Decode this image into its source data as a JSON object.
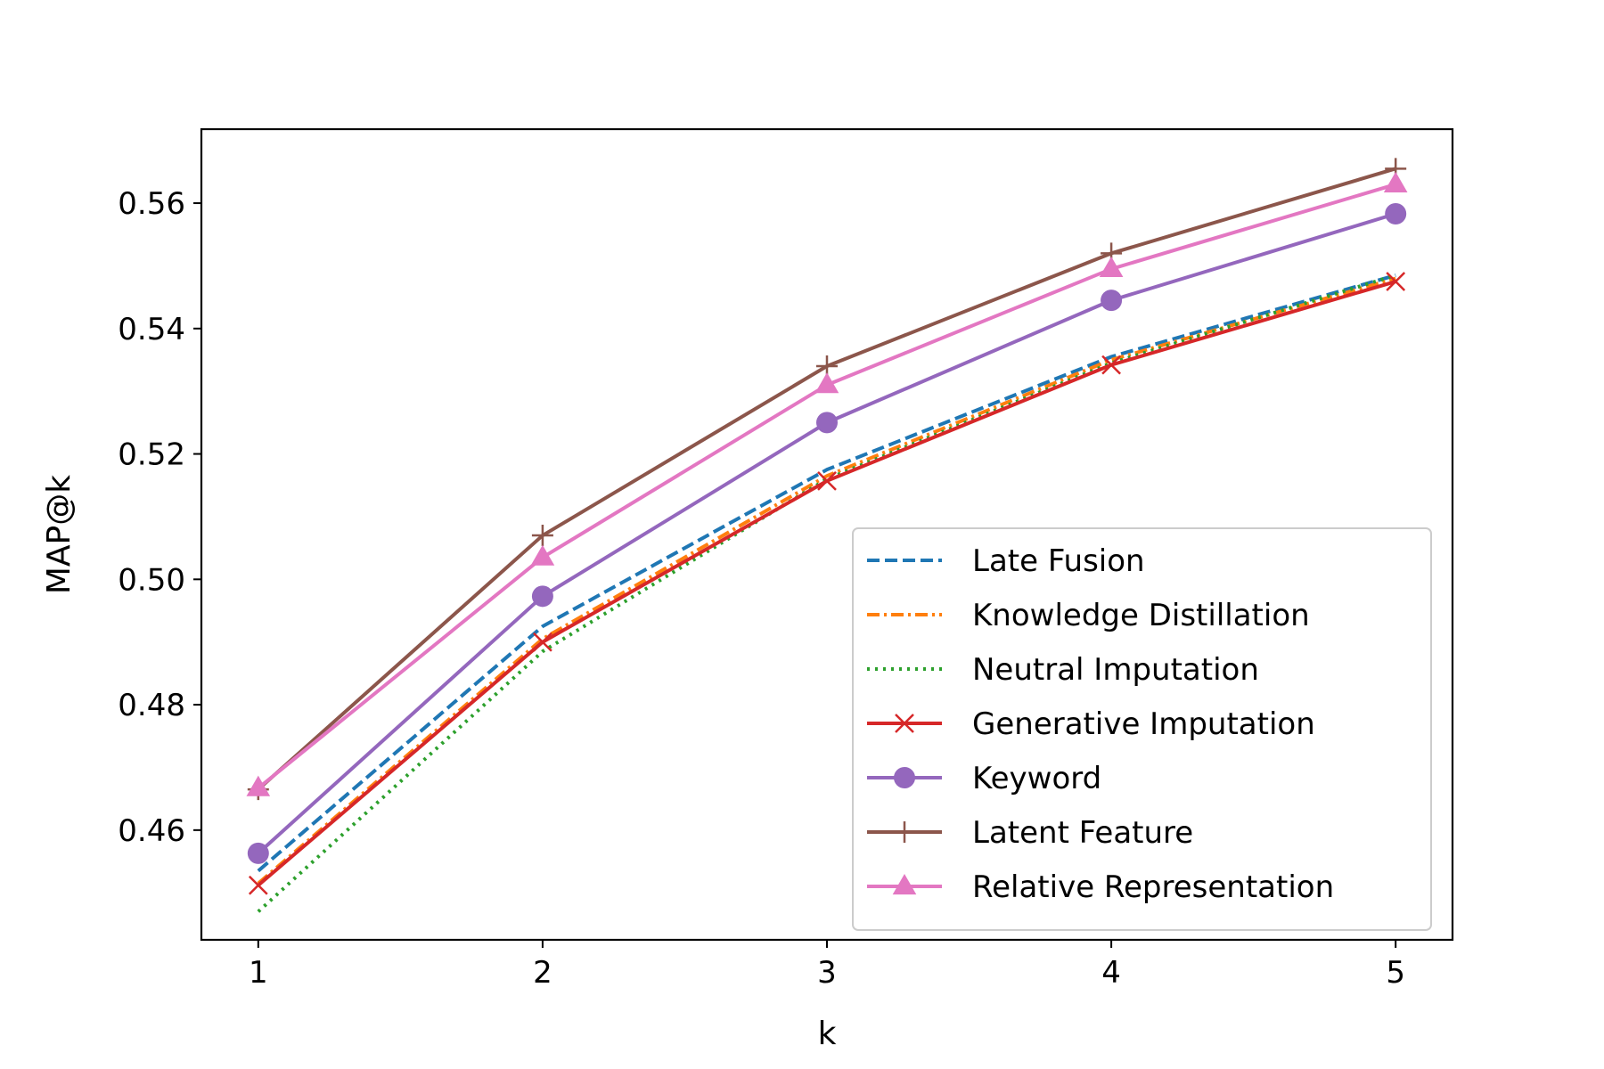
{
  "chart_data": {
    "type": "line",
    "title": "",
    "xlabel": "k",
    "ylabel": "MAP@k",
    "x": [
      1,
      2,
      3,
      4,
      5
    ],
    "xlim": [
      0.8,
      5.2
    ],
    "ylim": [
      0.4425,
      0.5718
    ],
    "xticks": [
      1,
      2,
      3,
      4,
      5
    ],
    "xtick_labels": [
      "1",
      "2",
      "3",
      "4",
      "5"
    ],
    "yticks": [
      0.46,
      0.48,
      0.5,
      0.52,
      0.54,
      0.56
    ],
    "ytick_labels": [
      "0.46",
      "0.48",
      "0.50",
      "0.52",
      "0.54",
      "0.56"
    ],
    "grid": false,
    "legend_position": "lower-right",
    "series": [
      {
        "name": "Late Fusion",
        "values": [
          0.4535,
          0.4925,
          0.5175,
          0.5355,
          0.5485
        ],
        "color": "#1f77b4",
        "line_style": "dashed",
        "marker": "none"
      },
      {
        "name": "Knowledge Distillation",
        "values": [
          0.4515,
          0.4905,
          0.5165,
          0.535,
          0.548
        ],
        "color": "#ff7f0e",
        "line_style": "dashdot",
        "marker": "none"
      },
      {
        "name": "Neutral Imputation",
        "values": [
          0.447,
          0.4885,
          0.516,
          0.5345,
          0.5485
        ],
        "color": "#2ca02c",
        "line_style": "dotted",
        "marker": "none"
      },
      {
        "name": "Generative Imputation",
        "values": [
          0.4512,
          0.49,
          0.5157,
          0.5342,
          0.5475
        ],
        "color": "#d62728",
        "line_style": "solid",
        "marker": "x"
      },
      {
        "name": "Keyword",
        "values": [
          0.4563,
          0.4973,
          0.525,
          0.5445,
          0.5583
        ],
        "color": "#9467bd",
        "line_style": "solid",
        "marker": "circle"
      },
      {
        "name": "Latent Feature",
        "values": [
          0.4665,
          0.507,
          0.534,
          0.552,
          0.5655
        ],
        "color": "#8c564b",
        "line_style": "solid",
        "marker": "plus"
      },
      {
        "name": "Relative Representation",
        "values": [
          0.4667,
          0.5035,
          0.531,
          0.5495,
          0.563
        ],
        "color": "#e377c2",
        "line_style": "solid",
        "marker": "triangle"
      }
    ]
  }
}
